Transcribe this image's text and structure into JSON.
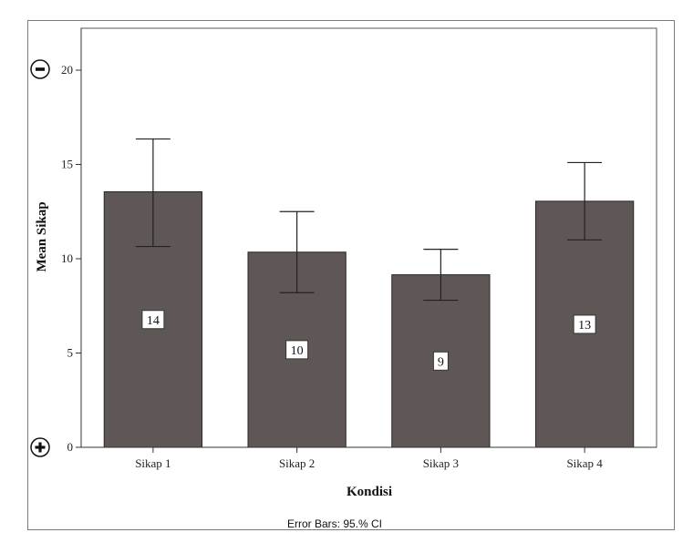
{
  "chart_data": {
    "type": "bar",
    "categories": [
      "Sikap 1",
      "Sikap 2",
      "Sikap 3",
      "Sikap 4"
    ],
    "values": [
      13.55,
      10.35,
      9.15,
      13.05
    ],
    "error_bars": [
      {
        "low": 10.65,
        "high": 16.35
      },
      {
        "low": 8.2,
        "high": 12.5
      },
      {
        "low": 7.8,
        "high": 10.5
      },
      {
        "low": 11.0,
        "high": 15.1
      }
    ],
    "data_labels": [
      "14",
      "10",
      "9",
      "13"
    ],
    "xlabel": "Kondisi",
    "ylabel": "Mean Sikap",
    "ylim": [
      0,
      20
    ],
    "yticks": [
      "0",
      "5",
      "10",
      "15",
      "20"
    ],
    "grid": false,
    "bar_color": "#5f5755",
    "footnote": "Error Bars: 95.% CI"
  },
  "controls": {
    "zoom_out_icon": "minus-circle-icon",
    "zoom_in_icon": "plus-circle-icon"
  }
}
